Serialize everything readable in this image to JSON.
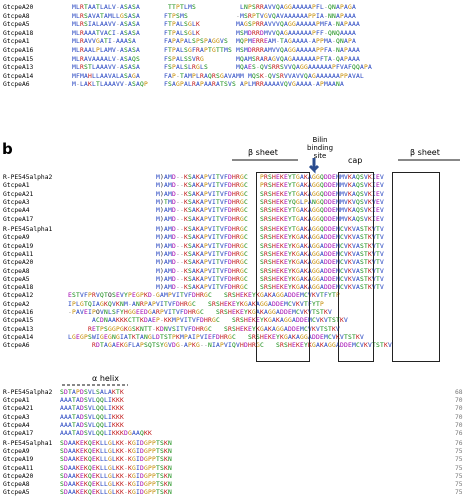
{
  "panel_a": {
    "rows": [
      {
        "name": "GtcpeA20",
        "seq": "MLRTAATLALV-ASASA       TTPTLMS           LNPSRRAVVQAGGAAAAAPFL-QNAPAGA"
      },
      {
        "name": "GtcpeA8",
        "seq": "MLRSAVATAMLLGSASA      FTPSMS            -MSRPTVGVQAVAAAAAAPPIA-NNAPAAA"
      },
      {
        "name": "GtcpeA5",
        "seq": "MLRSIALAAVV-ASASA      FTPALSGLK         MAGSPRRAVVVQAGGAAAAAPMFA-NAPAAA"
      },
      {
        "name": "GtcpeA18",
        "seq": "MLRAAATVACI-ASASA      FTPALSGLK         MSMDRRDMVVQAGAAAAAAPFF-QNQAAAA"
      },
      {
        "name": "GtcpeA1",
        "seq": "MLRAVVGATI-AAASA       FAPAPALSPSPAGGVS  MQPMERREAM-TAGAAAA-APPMA-QNAPA"
      },
      {
        "name": "GtcpeA16",
        "seq": "MLRAALPLAMV-ASASA      FTPALSGFRAPTGTTMS MSMDRRRAMVVQAGGAAAAAPPFA-NAPAAA"
      },
      {
        "name": "GtcpeA15",
        "seq": "MLRAVAAAALV-ASAQS      FSPALSSVRG        MQAMSRARAGVQAGAAAAAAPFTA-QAPAAA"
      },
      {
        "name": "GtcpeA13",
        "seq": "MLRSTLAAAVV-ASASA      FSPALSLRGLS       MQAES-QVSRRSVVQAGGAAAAAAPFVAFQQAPA"
      },
      {
        "name": "GtcpeA14",
        "seq": "MFMAHLLAAVALASAGA      FAP-TAMPLRAQRSGAVAMM MQSK-QVSRVVAVVQAGAAAAAAPPAVAL"
      },
      {
        "name": "GtcpeA6",
        "seq": "M-LAKLTLAAAVV-ASAQP    FSAGPALRAPAARATSVS APLMRRAAAAVQVGAAAA-APMAANA"
      }
    ]
  },
  "panel_b": {
    "label": "b",
    "annotations": {
      "beta1": "β sheet",
      "bilin": "Bilin binding site",
      "cap": "cap",
      "beta2": "β sheet",
      "helix": "α helix"
    },
    "block1": [
      {
        "name": "R-PE545alpha2",
        "seq": "                        M)AMD--KSAKAPVITVFDHRGC   PRSHEKEYTGAKAGGQDDEMMVKAQSVKIEV"
      },
      {
        "name": "GtcpeA1",
        "seq": "                        M)AMD--KSAKAPVITVFDHRGC   PRSHEKEYTGAKAGGQDDEMMVKAQSVKIEV"
      },
      {
        "name": "GtcpeA21",
        "seq": "                        M)AMD--KSAKAPVITVFDHRGC   SRSHEKEYTGAKAGGQDDEMMVKAQSVKIEV"
      },
      {
        "name": "GtcpeA3",
        "seq": "                        M)TMD--KSAKAPVITVFDHRGC   SRSHEKEYQGLPANGQDDEMMVKVQSVKVEV"
      },
      {
        "name": "GtcpeA4",
        "seq": "                        M)AMD--KSAKAPVITVFDHRGC   SRSHEKEYTGAKAGGQDDEMMVKAQSVKIEV"
      },
      {
        "name": "GtcpeA17",
        "seq": "                        M)AMD--KSAKAPVITVFDHRGC   SRSHEKEYTGAKAGGQDDEMMVKAQSVKIEV"
      }
    ],
    "block2": [
      {
        "name": "R-PE545alpha1",
        "seq": "                        M)AMD--KSAKAPVITVFDHRGC   SRSHEKEYTGAKAGGQDDEMCVKVASTKVTV"
      },
      {
        "name": "GtcpeA9",
        "seq": "                        M)AMD--KSAKAPVITVFDHRGC   SRSHEKEYKGAKAGGADDEMCVKVASTKVTV"
      },
      {
        "name": "GtcpeA19",
        "seq": "                        M)AMD--KSAKAPVITVFDHRGC   SRSHEKEYKGAKAGGADDEMCVKVASTKVTV"
      },
      {
        "name": "GtcpeA11",
        "seq": "                        M)AMD--KSAKAPVITVFDHRGC   SRSHEKEYKGAKAGGADDEMCVKVASTKVTV"
      },
      {
        "name": "GtcpeA20",
        "seq": "                        M)AMD--KSAKAPVITVFDHRGC   SRSHEKEYKGAKAGGADDEMCVKVASTKVTV"
      },
      {
        "name": "GtcpeA8",
        "seq": "                        M)AMD--KSAKAPVITVFDHRGC   SRSHEKEYKGAKAGGADDEMCVKVASTKVTV"
      },
      {
        "name": "GtcpeA5",
        "seq": "                        M)AMD--KSAKAPVITVFDHRGC   SRSHEKEYKGAKAGGADDEMCVKVASTKVTV"
      },
      {
        "name": "GtcpeA18",
        "seq": "                        M)AMD--KSAKAPVITVFDHRGC   SRSHEKEYKGAKAGGADDEMCVKVASTKVTV"
      },
      {
        "name": "GtcpeA12",
        "seq": "  ESTVFPRVQTOSEVYPEGPKD-GAMPVITVFDHRGC   SRSHEKEYKGAKAGGADDEMCVKVTFYTP"
      },
      {
        "name": "GtcpeA2",
        "seq": "  IPLGTQIAGKQVKNM-ANRPAPVITVFDHRGC   SRSHEKEYKGAKAGGADDEMCVKVTFYTP"
      },
      {
        "name": "GtcpeA16",
        "seq": "  -PAVEIPOVNLSFYHGGEEDGARPVITVFDHRGC   SRSHEKEYKGAKAGGADDEMCVKVTSTKV"
      },
      {
        "name": "GtcpeA15",
        "seq": "        ACDNAAKKKCTTKDAEP-KKMPVITVFDHRGC   SRSHEKEYKGAKAGGADDEMCVKVTSTKV"
      },
      {
        "name": "GtcpeA13",
        "seq": "       RETPSGGPGKGSKNTT-KDNVSITVFDHRGC   SRSHEKEYKGAKAGGADDEMCVKVTSTKV"
      },
      {
        "name": "GtcpeA14",
        "seq": "  LGEGPSWIGEGNGIATKTANGLDTSTPKMPAIPVIEFDHRGC   SRSHEKEYKGAKAGGADDEMCVKVTSTKV"
      },
      {
        "name": "GtcpeA6",
        "seq": "        RDTAGAEKGFLAPSQTSYGVDG-APKG--NIAPVIQVHDHRGC   SRSHEKEYKGAKAGGADDEMCVKVTSTKV"
      }
    ],
    "block3": [
      {
        "name": "R-PE545alpha2",
        "seq": "SDTAPDSVLSALAKTK",
        "num": "68"
      },
      {
        "name": "GtcpeA1",
        "seq": "AAATADSVLQQLIKKK",
        "num": "70"
      },
      {
        "name": "GtcpeA21",
        "seq": "AAATADSVLQQLIKKK",
        "num": "70"
      },
      {
        "name": "GtcpeA3",
        "seq": "AAATADSVLQQLIKKK",
        "num": "70"
      },
      {
        "name": "GtcpeA4",
        "seq": "AAATADSVLQQLIKKK",
        "num": "70"
      },
      {
        "name": "GtcpeA17",
        "seq": "AAATADSVLQQLIKKKDGAAQKK",
        "num": "76"
      }
    ],
    "block4": [
      {
        "name": "R-PE545alpha1",
        "seq": "SDAAKEKQEKLLGLKK-KGIDGPPTSKN",
        "num": "76"
      },
      {
        "name": "GtcpeA9",
        "seq": "SDAAKEKQEKLLGLKK-KGIDGPPTSKN",
        "num": "75"
      },
      {
        "name": "GtcpeA19",
        "seq": "SDAAKEKQEKLLGLKK-KGIDGPPTSKN",
        "num": "75"
      },
      {
        "name": "GtcpeA11",
        "seq": "SDAAKEKQEKLLGLKK-KGIDGPPTSKN",
        "num": "75"
      },
      {
        "name": "GtcpeA20",
        "seq": "SDAAKEKQEKLLGLKK-KGIDGPPTSKN",
        "num": "75"
      },
      {
        "name": "GtcpeA8",
        "seq": "SDAAKEKQEKLLGLKK-KGIDGPPTSKN",
        "num": "75"
      },
      {
        "name": "GtcpeA5",
        "seq": "SDAAKEKQEKLLGLKK-KGIDGPPTSKN",
        "num": "75"
      }
    ]
  }
}
